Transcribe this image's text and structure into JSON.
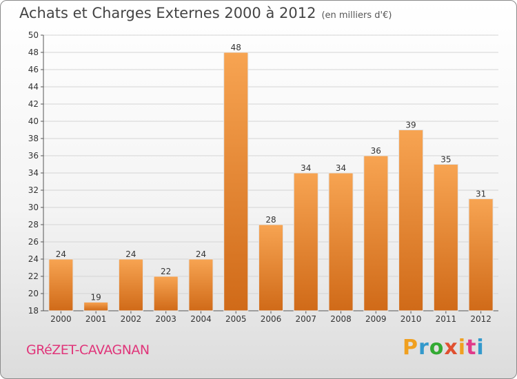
{
  "header": {
    "title": "Achats et Charges Externes 2000 à 2012",
    "subtitle": "(en milliers d'€)"
  },
  "footer": {
    "commune": "GRéZET-CAVAGNAN",
    "logo_text": "Proxiti",
    "logo_colors": [
      "#f0a020",
      "#3399cc",
      "#33aa33",
      "#e05030",
      "#f0a020",
      "#e03a8a",
      "#3399cc"
    ]
  },
  "colors": {
    "bar_top": "#f7a452",
    "bar_bottom": "#d06a18",
    "bar_edge": "#e2e2e2",
    "grid": "#d4d4d4"
  },
  "chart_data": {
    "type": "bar",
    "title": "Achats et Charges Externes 2000 à 2012",
    "subtitle": "(en milliers d'€)",
    "xlabel": "",
    "ylabel": "",
    "categories": [
      "2000",
      "2001",
      "2002",
      "2003",
      "2004",
      "2005",
      "2006",
      "2007",
      "2008",
      "2009",
      "2010",
      "2011",
      "2012"
    ],
    "values": [
      24,
      19,
      24,
      22,
      24,
      48,
      28,
      34,
      34,
      36,
      39,
      35,
      31
    ],
    "ylim": [
      18,
      50
    ],
    "yticks": [
      18,
      20,
      22,
      24,
      26,
      28,
      30,
      32,
      34,
      36,
      38,
      40,
      42,
      44,
      46,
      48,
      50
    ],
    "grid": true
  }
}
